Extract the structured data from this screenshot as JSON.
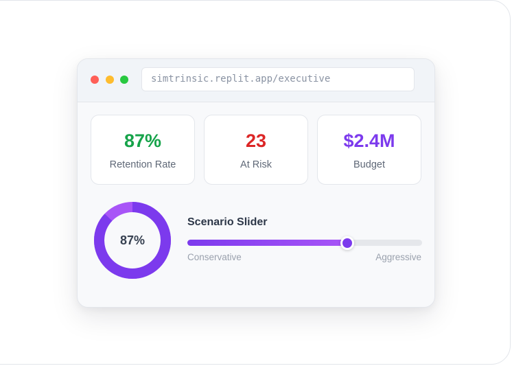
{
  "browser": {
    "url": "simtrinsic.replit.app/executive",
    "controls": [
      {
        "name": "close",
        "color": "#ff5f57"
      },
      {
        "name": "minimize",
        "color": "#febc2e"
      },
      {
        "name": "maximize",
        "color": "#28c840"
      }
    ]
  },
  "metrics": [
    {
      "value": "87%",
      "label": "Retention Rate",
      "color": "#16a34a"
    },
    {
      "value": "23",
      "label": "At Risk",
      "color": "#dc2626"
    },
    {
      "value": "$2.4M",
      "label": "Budget",
      "color": "#7c3aed"
    }
  ],
  "donut": {
    "label": "87%",
    "percent": 87,
    "primary_color": "#7c3aed",
    "secondary_color": "#a855f7"
  },
  "slider": {
    "title": "Scenario Slider",
    "min_label": "Conservative",
    "max_label": "Aggressive",
    "value_percent": 68
  }
}
